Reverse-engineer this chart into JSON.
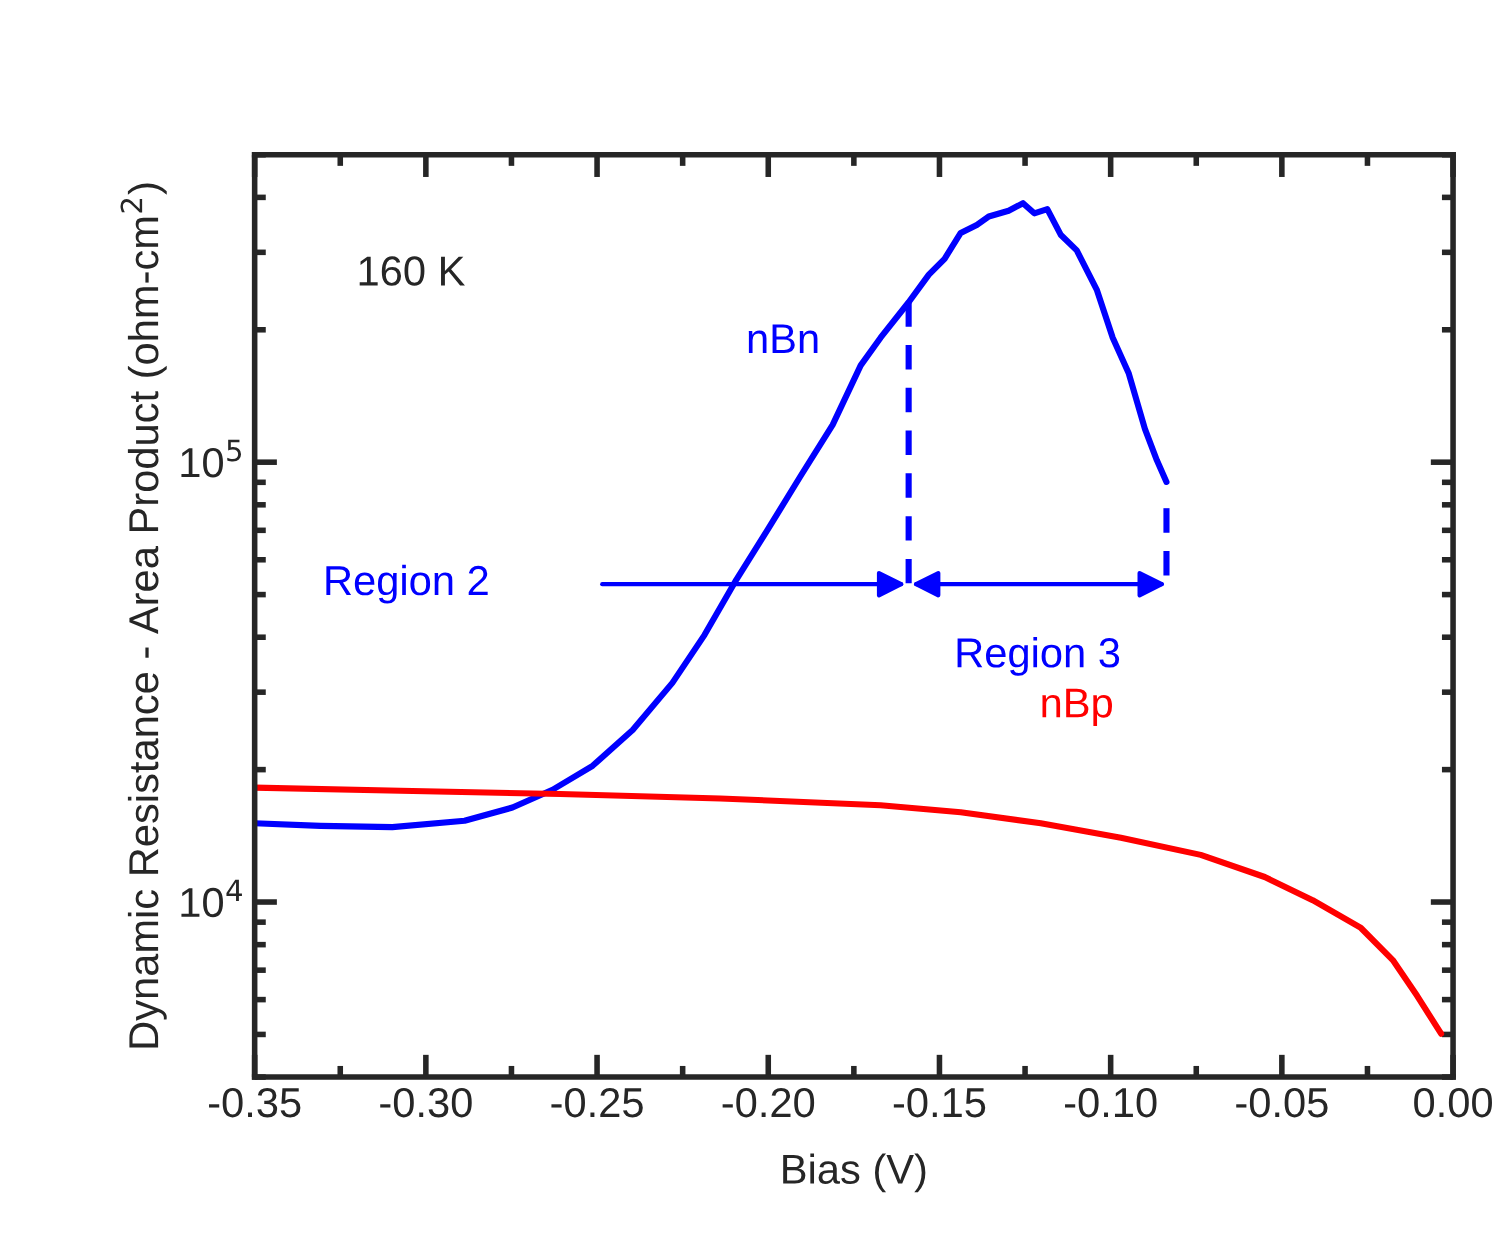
{
  "chart_data": {
    "type": "line",
    "xlabel": "Bias (V)",
    "ylabel": "Dynamic Resistance - Area Product (ohm-cm$^{2}$)",
    "log": "y",
    "xlim": [
      -0.35,
      0.0
    ],
    "ylim": [
      4000,
      500000
    ],
    "xticks": [
      {
        "value": -0.35,
        "label": "-0.35"
      },
      {
        "value": -0.3,
        "label": "-0.30"
      },
      {
        "value": -0.25,
        "label": "-0.25"
      },
      {
        "value": -0.2,
        "label": "-0.20"
      },
      {
        "value": -0.15,
        "label": "-0.15"
      },
      {
        "value": -0.1,
        "label": "-0.10"
      },
      {
        "value": -0.05,
        "label": "-0.05"
      },
      {
        "value": 0.0,
        "label": "0.00"
      }
    ],
    "yticks": [
      {
        "value": 10000,
        "label": "10$^{4}$"
      },
      {
        "value": 100000,
        "label": "10$^{5}$"
      }
    ],
    "grid": false,
    "legend": false,
    "marker": "none",
    "series": [
      {
        "name": "nBn",
        "color": "#0000ff",
        "line_style": "solid",
        "x": [
          -0.35,
          -0.3308,
          -0.3098,
          -0.2887,
          -0.2747,
          -0.263,
          -0.2513,
          -0.2396,
          -0.228,
          -0.2186,
          -0.2093,
          -0.1999,
          -0.1906,
          -0.1812,
          -0.173,
          -0.1672,
          -0.159,
          -0.1531,
          -0.1485,
          -0.1438,
          -0.1391,
          -0.1356,
          -0.1298,
          -0.1256,
          -0.1223,
          -0.1185,
          -0.1146,
          -0.1099,
          -0.104,
          -0.0994,
          -0.0947,
          -0.09,
          -0.0865,
          -0.0837
        ],
        "values": [
          15100,
          14900,
          14800,
          15300,
          16400,
          18000,
          20400,
          24600,
          31500,
          40500,
          54100,
          70800,
          92900,
          121600,
          166000,
          191900,
          231000,
          267000,
          290000,
          332000,
          346000,
          362000,
          373000,
          388000,
          368000,
          376000,
          329000,
          303000,
          246000,
          191900,
          159000,
          119000,
          101000,
          90200
        ]
      },
      {
        "name": "nBp",
        "color": "#ff0000",
        "line_style": "solid",
        "x": [
          -0.35,
          -0.3074,
          -0.2607,
          -0.214,
          -0.1672,
          -0.1438,
          -0.1204,
          -0.097,
          -0.0737,
          -0.055,
          -0.041,
          -0.0269,
          -0.0176,
          -0.0105,
          -0.0035
        ],
        "values": [
          18200,
          17900,
          17600,
          17200,
          16600,
          16000,
          15100,
          14000,
          12800,
          11400,
          10100,
          8730,
          7380,
          6120,
          5020
        ]
      },
      {
        "color": "#0000ff",
        "line_style": "dashed",
        "x": [
          -0.159,
          -0.159
        ],
        "values": [
          231000,
          52800
        ]
      },
      {
        "color": "#0000ff",
        "line_style": "dashed",
        "x": [
          -0.0837,
          -0.0837
        ],
        "values": [
          78600,
          52800
        ]
      }
    ],
    "annotations": [
      "160 K",
      "Region 2",
      "Region 3"
    ]
  }
}
